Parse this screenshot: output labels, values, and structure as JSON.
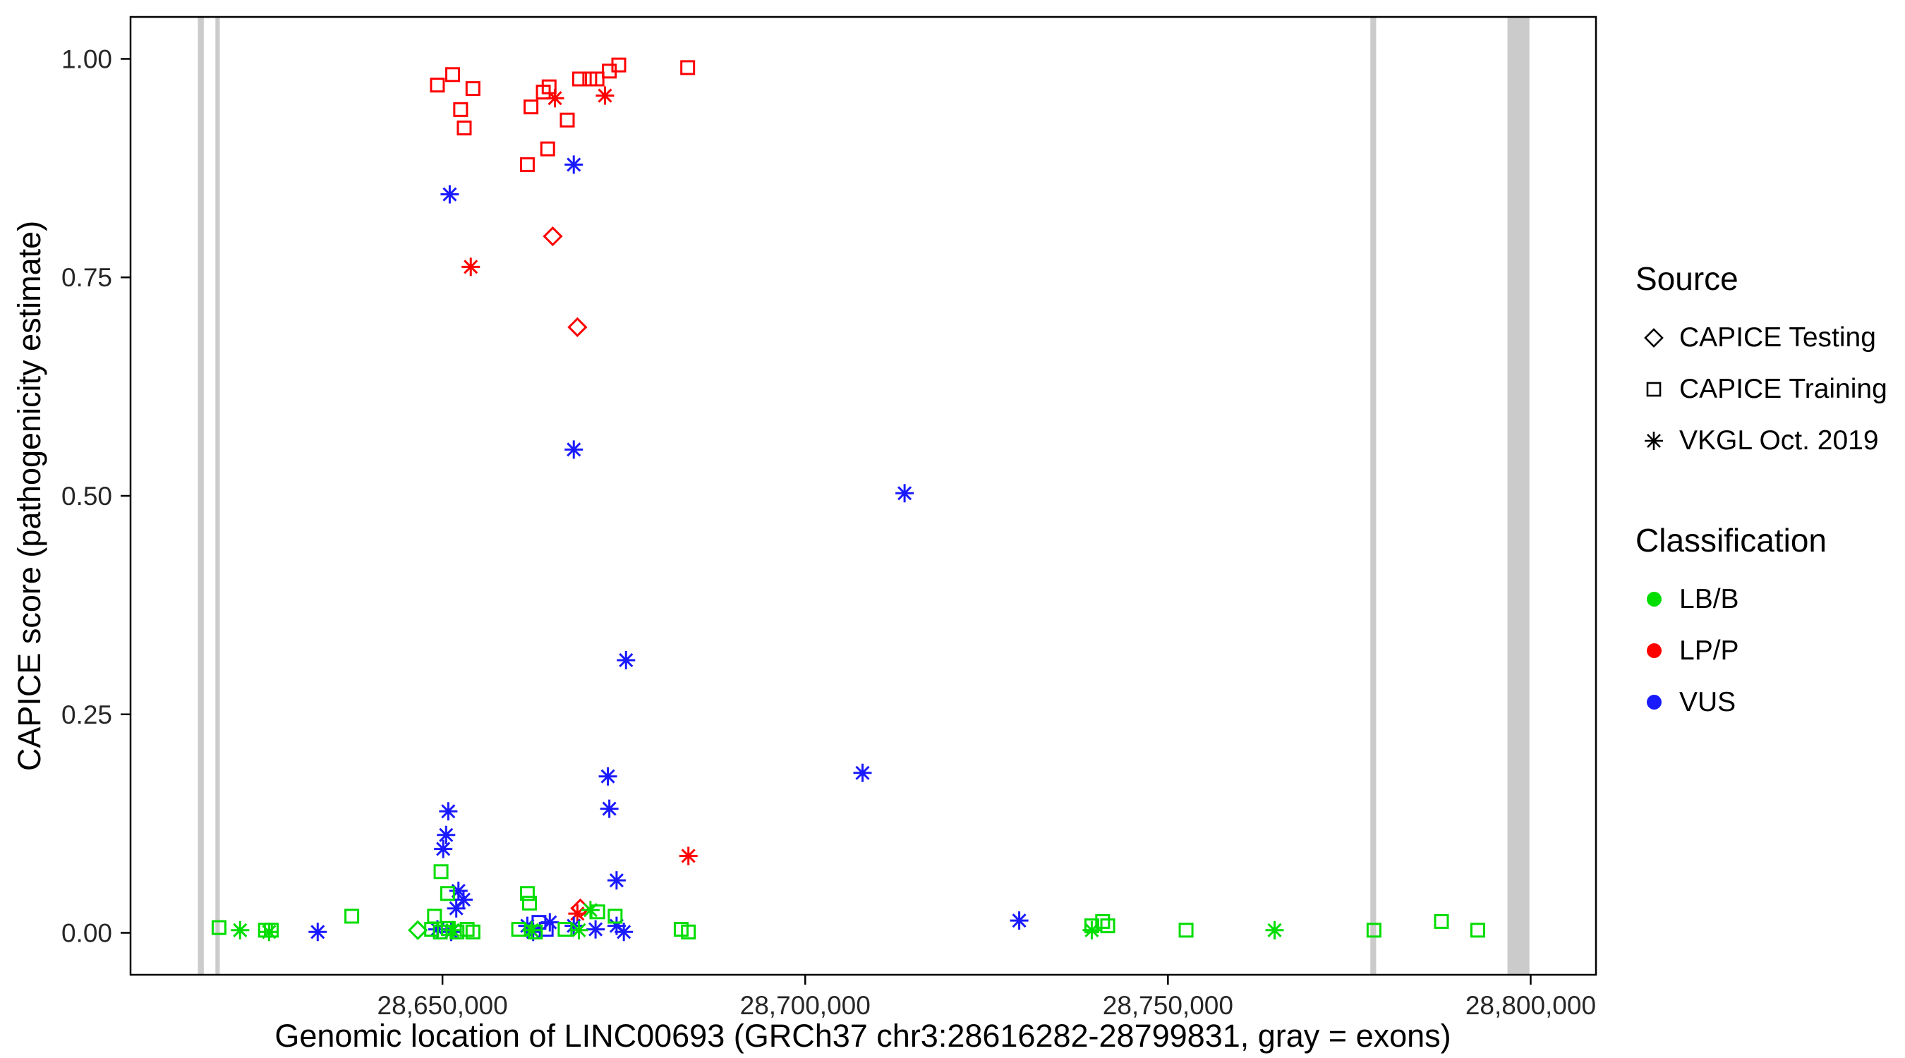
{
  "chart_data": {
    "type": "scatter",
    "title": "",
    "xlabel": "Genomic location of LINC00693 (GRCh37 chr3:28616282-28799831, gray = exons)",
    "ylabel": "CAPICE score (pathogenicity estimate)",
    "xlim": [
      28607000,
      28809000
    ],
    "ylim": [
      -0.048,
      1.048
    ],
    "grid": false,
    "x_ticks": [
      {
        "value": 28650000,
        "label": "28,650,000"
      },
      {
        "value": 28700000,
        "label": "28,700,000"
      },
      {
        "value": 28750000,
        "label": "28,750,000"
      },
      {
        "value": 28800000,
        "label": "28,800,000"
      }
    ],
    "y_ticks": [
      {
        "value": 0.0,
        "label": "0.00"
      },
      {
        "value": 0.25,
        "label": "0.25"
      },
      {
        "value": 0.5,
        "label": "0.50"
      },
      {
        "value": 0.75,
        "label": "0.75"
      },
      {
        "value": 1.0,
        "label": "1.00"
      }
    ],
    "exon_color": "#cbcbcb",
    "exons": [
      {
        "start": 28616282,
        "end": 28617100
      },
      {
        "start": 28618700,
        "end": 28619300
      },
      {
        "start": 28777900,
        "end": 28778700
      },
      {
        "start": 28796800,
        "end": 28799831
      }
    ],
    "colors": {
      "LB/B": "#00dd00",
      "LP/P": "#ff0000",
      "VUS": "#1a1aff"
    },
    "shape_by_source": {
      "CAPICE Testing": "diamond",
      "CAPICE Training": "square",
      "VKGL Oct. 2019": "asterisk"
    },
    "legend": {
      "source": {
        "title": "Source",
        "items": [
          {
            "label": "CAPICE Testing",
            "shape": "diamond"
          },
          {
            "label": "CAPICE Training",
            "shape": "square"
          },
          {
            "label": "VKGL Oct. 2019",
            "shape": "asterisk"
          }
        ]
      },
      "classification": {
        "title": "Classification",
        "items": [
          {
            "label": "LB/B",
            "color_key": "LB/B"
          },
          {
            "label": "LP/P",
            "color_key": "LP/P"
          },
          {
            "label": "VUS",
            "color_key": "VUS"
          }
        ]
      }
    },
    "points": [
      {
        "x": 28649300,
        "y": 0.97,
        "source": "CAPICE Training",
        "class": "LP/P"
      },
      {
        "x": 28651400,
        "y": 0.982,
        "source": "CAPICE Training",
        "class": "LP/P"
      },
      {
        "x": 28654200,
        "y": 0.966,
        "source": "CAPICE Training",
        "class": "LP/P"
      },
      {
        "x": 28652500,
        "y": 0.942,
        "source": "CAPICE Training",
        "class": "LP/P"
      },
      {
        "x": 28653000,
        "y": 0.921,
        "source": "CAPICE Training",
        "class": "LP/P"
      },
      {
        "x": 28662200,
        "y": 0.945,
        "source": "CAPICE Training",
        "class": "LP/P"
      },
      {
        "x": 28661700,
        "y": 0.879,
        "source": "CAPICE Training",
        "class": "LP/P"
      },
      {
        "x": 28663900,
        "y": 0.962,
        "source": "CAPICE Training",
        "class": "LP/P"
      },
      {
        "x": 28664700,
        "y": 0.968,
        "source": "CAPICE Training",
        "class": "LP/P"
      },
      {
        "x": 28664500,
        "y": 0.897,
        "source": "CAPICE Training",
        "class": "LP/P"
      },
      {
        "x": 28667200,
        "y": 0.93,
        "source": "CAPICE Training",
        "class": "LP/P"
      },
      {
        "x": 28668900,
        "y": 0.977,
        "source": "CAPICE Training",
        "class": "LP/P"
      },
      {
        "x": 28670300,
        "y": 0.977,
        "source": "CAPICE Training",
        "class": "LP/P"
      },
      {
        "x": 28671300,
        "y": 0.977,
        "source": "CAPICE Training",
        "class": "LP/P"
      },
      {
        "x": 28673000,
        "y": 0.986,
        "source": "CAPICE Training",
        "class": "LP/P"
      },
      {
        "x": 28674300,
        "y": 0.993,
        "source": "CAPICE Training",
        "class": "LP/P"
      },
      {
        "x": 28683800,
        "y": 0.99,
        "source": "CAPICE Training",
        "class": "LP/P"
      },
      {
        "x": 28653900,
        "y": 0.762,
        "source": "VKGL Oct. 2019",
        "class": "LP/P"
      },
      {
        "x": 28665500,
        "y": 0.955,
        "source": "VKGL Oct. 2019",
        "class": "LP/P"
      },
      {
        "x": 28672400,
        "y": 0.958,
        "source": "VKGL Oct. 2019",
        "class": "LP/P"
      },
      {
        "x": 28683900,
        "y": 0.088,
        "source": "VKGL Oct. 2019",
        "class": "LP/P"
      },
      {
        "x": 28668600,
        "y": 0.022,
        "source": "VKGL Oct. 2019",
        "class": "LP/P"
      },
      {
        "x": 28665200,
        "y": 0.797,
        "source": "CAPICE Testing",
        "class": "LP/P"
      },
      {
        "x": 28668600,
        "y": 0.693,
        "source": "CAPICE Testing",
        "class": "LP/P"
      },
      {
        "x": 28669000,
        "y": 0.028,
        "source": "CAPICE Testing",
        "class": "LP/P"
      },
      {
        "x": 28651000,
        "y": 0.845,
        "source": "VKGL Oct. 2019",
        "class": "VUS"
      },
      {
        "x": 28668100,
        "y": 0.879,
        "source": "VKGL Oct. 2019",
        "class": "VUS"
      },
      {
        "x": 28668100,
        "y": 0.553,
        "source": "VKGL Oct. 2019",
        "class": "VUS"
      },
      {
        "x": 28713700,
        "y": 0.503,
        "source": "VKGL Oct. 2019",
        "class": "VUS"
      },
      {
        "x": 28675300,
        "y": 0.312,
        "source": "VKGL Oct. 2019",
        "class": "VUS"
      },
      {
        "x": 28672800,
        "y": 0.179,
        "source": "VKGL Oct. 2019",
        "class": "VUS"
      },
      {
        "x": 28707900,
        "y": 0.183,
        "source": "VKGL Oct. 2019",
        "class": "VUS"
      },
      {
        "x": 28673000,
        "y": 0.142,
        "source": "VKGL Oct. 2019",
        "class": "VUS"
      },
      {
        "x": 28650800,
        "y": 0.139,
        "source": "VKGL Oct. 2019",
        "class": "VUS"
      },
      {
        "x": 28650500,
        "y": 0.112,
        "source": "VKGL Oct. 2019",
        "class": "VUS"
      },
      {
        "x": 28650100,
        "y": 0.096,
        "source": "VKGL Oct. 2019",
        "class": "VUS"
      },
      {
        "x": 28674000,
        "y": 0.06,
        "source": "VKGL Oct. 2019",
        "class": "VUS"
      },
      {
        "x": 28652200,
        "y": 0.048,
        "source": "VKGL Oct. 2019",
        "class": "VUS"
      },
      {
        "x": 28652900,
        "y": 0.038,
        "source": "VKGL Oct. 2019",
        "class": "VUS"
      },
      {
        "x": 28651900,
        "y": 0.028,
        "source": "VKGL Oct. 2019",
        "class": "VUS"
      },
      {
        "x": 28729500,
        "y": 0.014,
        "source": "VKGL Oct. 2019",
        "class": "VUS"
      },
      {
        "x": 28632800,
        "y": 0.001,
        "source": "VKGL Oct. 2019",
        "class": "VUS"
      },
      {
        "x": 28661700,
        "y": 0.008,
        "source": "VKGL Oct. 2019",
        "class": "VUS"
      },
      {
        "x": 28662500,
        "y": 0.001,
        "source": "VKGL Oct. 2019",
        "class": "VUS"
      },
      {
        "x": 28668100,
        "y": 0.008,
        "source": "VKGL Oct. 2019",
        "class": "VUS"
      },
      {
        "x": 28671100,
        "y": 0.004,
        "source": "VKGL Oct. 2019",
        "class": "VUS"
      },
      {
        "x": 28674000,
        "y": 0.008,
        "source": "VKGL Oct. 2019",
        "class": "VUS"
      },
      {
        "x": 28675000,
        "y": 0.001,
        "source": "VKGL Oct. 2019",
        "class": "VUS"
      },
      {
        "x": 28649300,
        "y": 0.004,
        "source": "VKGL Oct. 2019",
        "class": "VUS"
      },
      {
        "x": 28651200,
        "y": 0.001,
        "source": "VKGL Oct. 2019",
        "class": "VUS"
      },
      {
        "x": 28664800,
        "y": 0.012,
        "source": "VKGL Oct. 2019",
        "class": "VUS"
      },
      {
        "x": 28663300,
        "y": 0.012,
        "source": "CAPICE Training",
        "class": "VUS"
      },
      {
        "x": 28664300,
        "y": 0.004,
        "source": "CAPICE Training",
        "class": "VUS"
      },
      {
        "x": 28619200,
        "y": 0.006,
        "source": "CAPICE Training",
        "class": "LB/B"
      },
      {
        "x": 28625600,
        "y": 0.003,
        "source": "CAPICE Training",
        "class": "LB/B"
      },
      {
        "x": 28626400,
        "y": 0.003,
        "source": "CAPICE Training",
        "class": "LB/B"
      },
      {
        "x": 28637500,
        "y": 0.019,
        "source": "CAPICE Training",
        "class": "LB/B"
      },
      {
        "x": 28649800,
        "y": 0.07,
        "source": "CAPICE Training",
        "class": "LB/B"
      },
      {
        "x": 28650700,
        "y": 0.045,
        "source": "CAPICE Training",
        "class": "LB/B"
      },
      {
        "x": 28661700,
        "y": 0.045,
        "source": "CAPICE Training",
        "class": "LB/B"
      },
      {
        "x": 28662000,
        "y": 0.034,
        "source": "CAPICE Training",
        "class": "LB/B"
      },
      {
        "x": 28671400,
        "y": 0.024,
        "source": "CAPICE Training",
        "class": "LB/B"
      },
      {
        "x": 28673800,
        "y": 0.019,
        "source": "CAPICE Training",
        "class": "LB/B"
      },
      {
        "x": 28648900,
        "y": 0.019,
        "source": "CAPICE Training",
        "class": "LB/B"
      },
      {
        "x": 28648500,
        "y": 0.004,
        "source": "CAPICE Training",
        "class": "LB/B"
      },
      {
        "x": 28649700,
        "y": 0.001,
        "source": "CAPICE Training",
        "class": "LB/B"
      },
      {
        "x": 28650800,
        "y": 0.005,
        "source": "CAPICE Training",
        "class": "LB/B"
      },
      {
        "x": 28652000,
        "y": 0.001,
        "source": "CAPICE Training",
        "class": "LB/B"
      },
      {
        "x": 28653400,
        "y": 0.004,
        "source": "CAPICE Training",
        "class": "LB/B"
      },
      {
        "x": 28654200,
        "y": 0.001,
        "source": "CAPICE Training",
        "class": "LB/B"
      },
      {
        "x": 28660500,
        "y": 0.004,
        "source": "CAPICE Training",
        "class": "LB/B"
      },
      {
        "x": 28662800,
        "y": 0.001,
        "source": "CAPICE Training",
        "class": "LB/B"
      },
      {
        "x": 28666900,
        "y": 0.004,
        "source": "CAPICE Training",
        "class": "LB/B"
      },
      {
        "x": 28682900,
        "y": 0.004,
        "source": "CAPICE Training",
        "class": "LB/B"
      },
      {
        "x": 28683900,
        "y": 0.001,
        "source": "CAPICE Training",
        "class": "LB/B"
      },
      {
        "x": 28739500,
        "y": 0.008,
        "source": "CAPICE Training",
        "class": "LB/B"
      },
      {
        "x": 28741000,
        "y": 0.013,
        "source": "CAPICE Training",
        "class": "LB/B"
      },
      {
        "x": 28741700,
        "y": 0.008,
        "source": "CAPICE Training",
        "class": "LB/B"
      },
      {
        "x": 28752500,
        "y": 0.003,
        "source": "CAPICE Training",
        "class": "LB/B"
      },
      {
        "x": 28778400,
        "y": 0.003,
        "source": "CAPICE Training",
        "class": "LB/B"
      },
      {
        "x": 28787700,
        "y": 0.013,
        "source": "CAPICE Training",
        "class": "LB/B"
      },
      {
        "x": 28792700,
        "y": 0.003,
        "source": "CAPICE Training",
        "class": "LB/B"
      },
      {
        "x": 28622100,
        "y": 0.003,
        "source": "VKGL Oct. 2019",
        "class": "LB/B"
      },
      {
        "x": 28626100,
        "y": 0.001,
        "source": "VKGL Oct. 2019",
        "class": "LB/B"
      },
      {
        "x": 28670400,
        "y": 0.026,
        "source": "VKGL Oct. 2019",
        "class": "LB/B"
      },
      {
        "x": 28651400,
        "y": 0.003,
        "source": "VKGL Oct. 2019",
        "class": "LB/B"
      },
      {
        "x": 28662300,
        "y": 0.003,
        "source": "VKGL Oct. 2019",
        "class": "LB/B"
      },
      {
        "x": 28668800,
        "y": 0.003,
        "source": "VKGL Oct. 2019",
        "class": "LB/B"
      },
      {
        "x": 28739500,
        "y": 0.003,
        "source": "VKGL Oct. 2019",
        "class": "LB/B"
      },
      {
        "x": 28764700,
        "y": 0.003,
        "source": "VKGL Oct. 2019",
        "class": "LB/B"
      },
      {
        "x": 28646600,
        "y": 0.003,
        "source": "CAPICE Testing",
        "class": "LB/B"
      }
    ]
  }
}
